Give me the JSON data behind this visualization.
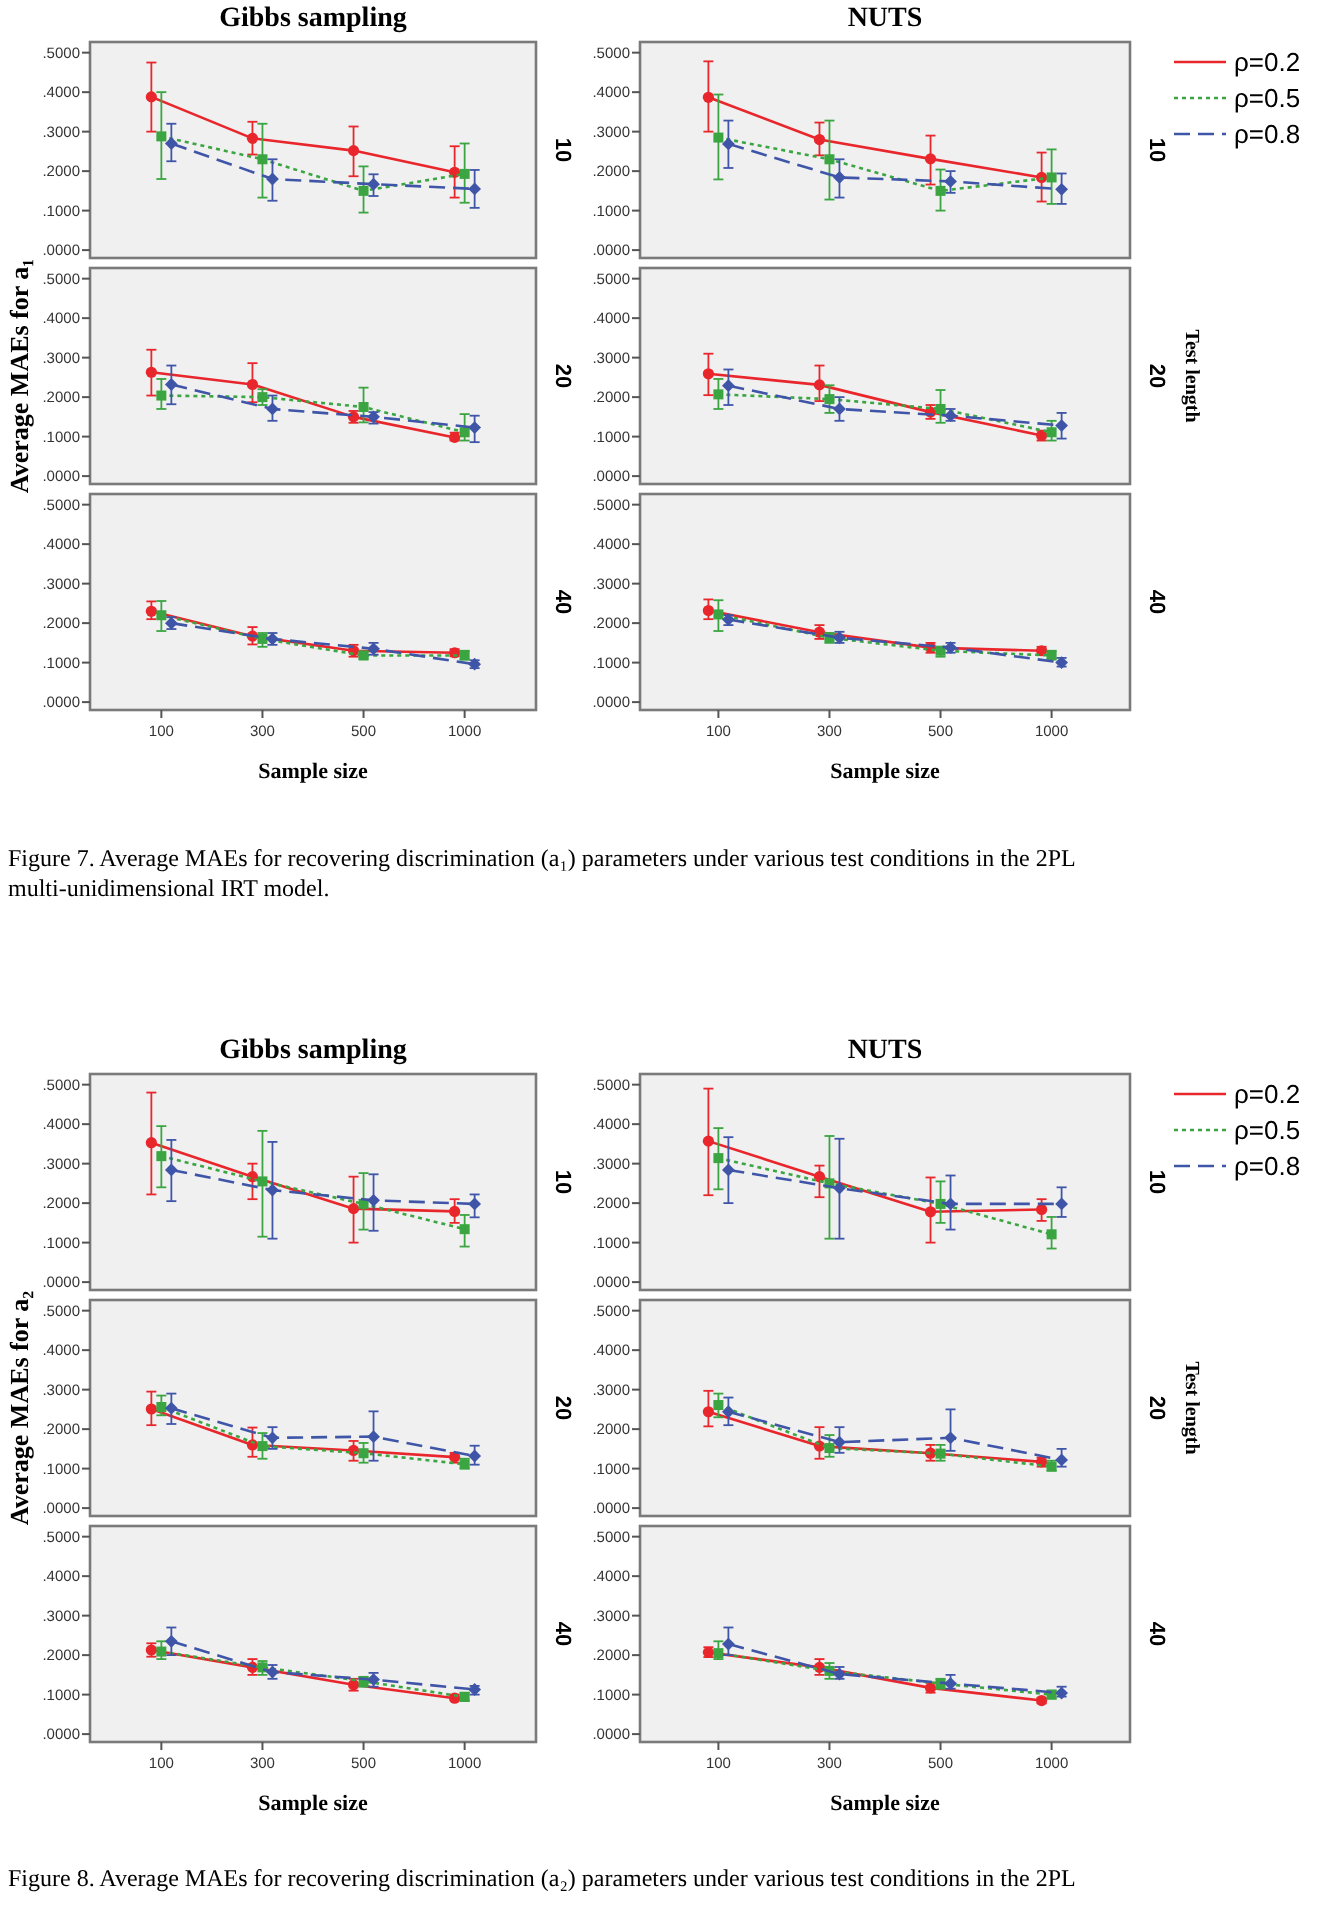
{
  "chart_data": [
    {
      "type": "line",
      "title": "Gibbs sampling",
      "categories": [
        "100",
        "300",
        "500",
        "1000"
      ],
      "ylim": [
        -0.02,
        0.527
      ],
      "yticks": [
        {
          "value": 0,
          "label": ".0000"
        },
        {
          "value": 0.1,
          "label": ".1000"
        },
        {
          "value": 0.2,
          "label": ".2000"
        },
        {
          "value": 0.3,
          "label": ".3000"
        },
        {
          "value": 0.4,
          "label": ".4000"
        },
        {
          "value": 0.5,
          "label": ".5000"
        }
      ],
      "tick_labels": "y",
      "annotations": [
        "10"
      ],
      "series": [
        {
          "color": "#e8262b",
          "marker": "circle",
          "line_style": "solid",
          "values": [
            0.388,
            0.283,
            0.252,
            0.197
          ],
          "errors": [
            [
              0.3,
              0.475
            ],
            [
              0.242,
              0.325
            ],
            [
              0.187,
              0.313
            ],
            [
              0.133,
              0.263
            ]
          ]
        },
        {
          "color": "#3aa541",
          "marker": "square",
          "line_style": "dotted",
          "values": [
            0.288,
            0.23,
            0.15,
            0.193
          ],
          "errors": [
            [
              0.18,
              0.4
            ],
            [
              0.133,
              0.32
            ],
            [
              0.095,
              0.212
            ],
            [
              0.12,
              0.27
            ]
          ]
        },
        {
          "color": "#3f55a8",
          "marker": "diamond",
          "line_style": "dashed",
          "values": [
            0.27,
            0.18,
            0.167,
            0.155
          ],
          "errors": [
            [
              0.225,
              0.32
            ],
            [
              0.125,
              0.23
            ],
            [
              0.137,
              0.192
            ],
            [
              0.107,
              0.203
            ]
          ]
        }
      ]
    },
    {
      "type": "line",
      "title": "NUTS",
      "categories": [
        "100",
        "300",
        "500",
        "1000"
      ],
      "ylim": [
        -0.02,
        0.527
      ],
      "yticks": [
        {
          "value": 0,
          "label": ".0000"
        },
        {
          "value": 0.1,
          "label": ".1000"
        },
        {
          "value": 0.2,
          "label": ".2000"
        },
        {
          "value": 0.3,
          "label": ".3000"
        },
        {
          "value": 0.4,
          "label": ".4000"
        },
        {
          "value": 0.5,
          "label": ".5000"
        }
      ],
      "tick_labels": "y",
      "legend": "right",
      "annotations": [
        "10"
      ],
      "series": [
        {
          "name": "ρ=0.2",
          "color": "#e8262b",
          "marker": "circle",
          "line_style": "solid",
          "values": [
            0.387,
            0.28,
            0.231,
            0.184
          ],
          "errors": [
            [
              0.3,
              0.478
            ],
            [
              0.24,
              0.323
            ],
            [
              0.166,
              0.29
            ],
            [
              0.123,
              0.247
            ]
          ]
        },
        {
          "name": "ρ=0.5",
          "color": "#3aa541",
          "marker": "square",
          "line_style": "dotted",
          "values": [
            0.285,
            0.23,
            0.15,
            0.184
          ],
          "errors": [
            [
              0.179,
              0.394
            ],
            [
              0.128,
              0.328
            ],
            [
              0.1,
              0.204
            ],
            [
              0.117,
              0.255
            ]
          ]
        },
        {
          "name": "ρ=0.8",
          "color": "#3f55a8",
          "marker": "diamond",
          "line_style": "dashed",
          "values": [
            0.269,
            0.184,
            0.174,
            0.154
          ],
          "errors": [
            [
              0.208,
              0.328
            ],
            [
              0.133,
              0.23
            ],
            [
              0.145,
              0.2
            ],
            [
              0.117,
              0.194
            ]
          ]
        }
      ]
    },
    {
      "type": "line",
      "ylabel": "Average MAEs for a₁",
      "categories": [
        "100",
        "300",
        "500",
        "1000"
      ],
      "ylim": [
        -0.02,
        0.527
      ],
      "yticks": [
        {
          "value": 0,
          "label": ".0000"
        },
        {
          "value": 0.1,
          "label": ".1000"
        },
        {
          "value": 0.2,
          "label": ".2000"
        },
        {
          "value": 0.3,
          "label": ".3000"
        },
        {
          "value": 0.4,
          "label": ".4000"
        },
        {
          "value": 0.5,
          "label": ".5000"
        }
      ],
      "tick_labels": "y",
      "annotations": [
        "20"
      ],
      "series": [
        {
          "color": "#e8262b",
          "marker": "circle",
          "line_style": "solid",
          "values": [
            0.263,
            0.232,
            0.15,
            0.098
          ],
          "errors": [
            [
              0.204,
              0.32
            ],
            [
              0.187,
              0.286
            ],
            [
              0.135,
              0.165
            ],
            [
              0.09,
              0.11
            ]
          ]
        },
        {
          "color": "#3aa541",
          "marker": "square",
          "line_style": "dotted",
          "values": [
            0.204,
            0.2,
            0.175,
            0.111
          ],
          "errors": [
            [
              0.17,
              0.246
            ],
            [
              0.18,
              0.22
            ],
            [
              0.136,
              0.224
            ],
            [
              0.09,
              0.157
            ]
          ]
        },
        {
          "color": "#3f55a8",
          "marker": "diamond",
          "line_style": "dashed",
          "values": [
            0.232,
            0.17,
            0.15,
            0.123
          ],
          "errors": [
            [
              0.182,
              0.28
            ],
            [
              0.14,
              0.204
            ],
            [
              0.133,
              0.162
            ],
            [
              0.086,
              0.153
            ]
          ]
        }
      ]
    },
    {
      "type": "line",
      "categories": [
        "100",
        "300",
        "500",
        "1000"
      ],
      "ylim": [
        -0.02,
        0.527
      ],
      "yticks": [
        {
          "value": 0,
          "label": ".0000"
        },
        {
          "value": 0.1,
          "label": ".1000"
        },
        {
          "value": 0.2,
          "label": ".2000"
        },
        {
          "value": 0.3,
          "label": ".3000"
        },
        {
          "value": 0.4,
          "label": ".4000"
        },
        {
          "value": 0.5,
          "label": ".5000"
        }
      ],
      "tick_labels": "y",
      "annotations": [
        "20",
        "Test length"
      ],
      "series": [
        {
          "color": "#e8262b",
          "marker": "circle",
          "line_style": "solid",
          "values": [
            0.259,
            0.231,
            0.162,
            0.103
          ],
          "errors": [
            [
              0.205,
              0.31
            ],
            [
              0.19,
              0.28
            ],
            [
              0.145,
              0.18
            ],
            [
              0.09,
              0.115
            ]
          ]
        },
        {
          "color": "#3aa541",
          "marker": "square",
          "line_style": "dotted",
          "values": [
            0.207,
            0.195,
            0.17,
            0.111
          ],
          "errors": [
            [
              0.17,
              0.246
            ],
            [
              0.16,
              0.23
            ],
            [
              0.135,
              0.218
            ],
            [
              0.09,
              0.14
            ]
          ]
        },
        {
          "color": "#3f55a8",
          "marker": "diamond",
          "line_style": "dashed",
          "values": [
            0.229,
            0.17,
            0.153,
            0.128
          ],
          "errors": [
            [
              0.18,
              0.27
            ],
            [
              0.14,
              0.2
            ],
            [
              0.14,
              0.17
            ],
            [
              0.095,
              0.16
            ]
          ]
        }
      ]
    },
    {
      "type": "line",
      "xlabel": "Sample size",
      "categories": [
        "100",
        "300",
        "500",
        "1000"
      ],
      "ylim": [
        -0.02,
        0.527
      ],
      "yticks": [
        {
          "value": 0,
          "label": ".0000"
        },
        {
          "value": 0.1,
          "label": ".1000"
        },
        {
          "value": 0.2,
          "label": ".2000"
        },
        {
          "value": 0.3,
          "label": ".3000"
        },
        {
          "value": 0.4,
          "label": ".4000"
        },
        {
          "value": 0.5,
          "label": ".5000"
        }
      ],
      "annotations": [
        "40",
        "Figure 7. Average MAEs for recovering discrimination (a₁) parameters under various test conditions in the 2PL multi-unidimensional IRT model."
      ],
      "series": [
        {
          "color": "#e8262b",
          "marker": "circle",
          "line_style": "solid",
          "values": [
            0.23,
            0.167,
            0.13,
            0.125
          ],
          "errors": [
            [
              0.21,
              0.255
            ],
            [
              0.146,
              0.19
            ],
            [
              0.115,
              0.145
            ],
            [
              0.116,
              0.134
            ]
          ]
        },
        {
          "color": "#3aa541",
          "marker": "square",
          "line_style": "dotted",
          "values": [
            0.22,
            0.16,
            0.118,
            0.118
          ],
          "errors": [
            [
              0.18,
              0.256
            ],
            [
              0.14,
              0.175
            ],
            [
              0.11,
              0.128
            ],
            [
              0.108,
              0.13
            ]
          ]
        },
        {
          "color": "#3f55a8",
          "marker": "diamond",
          "line_style": "dashed",
          "values": [
            0.2,
            0.16,
            0.135,
            0.096
          ],
          "errors": [
            [
              0.185,
              0.215
            ],
            [
              0.145,
              0.175
            ],
            [
              0.12,
              0.15
            ],
            [
              0.086,
              0.106
            ]
          ]
        }
      ]
    },
    {
      "type": "line",
      "xlabel": "Sample size",
      "categories": [
        "100",
        "300",
        "500",
        "1000"
      ],
      "ylim": [
        -0.02,
        0.527
      ],
      "yticks": [
        {
          "value": 0,
          "label": ".0000"
        },
        {
          "value": 0.1,
          "label": ".1000"
        },
        {
          "value": 0.2,
          "label": ".2000"
        },
        {
          "value": 0.3,
          "label": ".3000"
        },
        {
          "value": 0.4,
          "label": ".4000"
        },
        {
          "value": 0.5,
          "label": ".5000"
        }
      ],
      "annotations": [
        "40"
      ],
      "series": [
        {
          "color": "#e8262b",
          "marker": "circle",
          "line_style": "solid",
          "values": [
            0.232,
            0.177,
            0.138,
            0.13
          ],
          "errors": [
            [
              0.21,
              0.26
            ],
            [
              0.16,
              0.195
            ],
            [
              0.125,
              0.15
            ],
            [
              0.12,
              0.14
            ]
          ]
        },
        {
          "color": "#3aa541",
          "marker": "square",
          "line_style": "dotted",
          "values": [
            0.222,
            0.163,
            0.13,
            0.118
          ],
          "errors": [
            [
              0.18,
              0.258
            ],
            [
              0.15,
              0.175
            ],
            [
              0.115,
              0.14
            ],
            [
              0.11,
              0.13
            ]
          ]
        },
        {
          "color": "#3f55a8",
          "marker": "diamond",
          "line_style": "dashed",
          "values": [
            0.209,
            0.163,
            0.138,
            0.1
          ],
          "errors": [
            [
              0.195,
              0.22
            ],
            [
              0.15,
              0.178
            ],
            [
              0.125,
              0.15
            ],
            [
              0.09,
              0.112
            ]
          ]
        }
      ]
    },
    {
      "type": "line",
      "title": "Gibbs sampling",
      "categories": [
        "100",
        "300",
        "500",
        "1000"
      ],
      "ylim": [
        -0.02,
        0.527
      ],
      "yticks": [
        {
          "value": 0,
          "label": ".0000"
        },
        {
          "value": 0.1,
          "label": ".1000"
        },
        {
          "value": 0.2,
          "label": ".2000"
        },
        {
          "value": 0.3,
          "label": ".3000"
        },
        {
          "value": 0.4,
          "label": ".4000"
        },
        {
          "value": 0.5,
          "label": ".5000"
        }
      ],
      "tick_labels": "y",
      "annotations": [
        "10"
      ],
      "series": [
        {
          "color": "#e8262b",
          "marker": "circle",
          "line_style": "solid",
          "values": [
            0.353,
            0.267,
            0.186,
            0.179
          ],
          "errors": [
            [
              0.222,
              0.48
            ],
            [
              0.21,
              0.3
            ],
            [
              0.1,
              0.267
            ],
            [
              0.15,
              0.21
            ]
          ]
        },
        {
          "color": "#3aa541",
          "marker": "square",
          "line_style": "dotted",
          "values": [
            0.319,
            0.255,
            0.198,
            0.134
          ],
          "errors": [
            [
              0.24,
              0.395
            ],
            [
              0.115,
              0.383
            ],
            [
              0.133,
              0.276
            ],
            [
              0.09,
              0.17
            ]
          ]
        },
        {
          "color": "#3f55a8",
          "marker": "diamond",
          "line_style": "dashed",
          "values": [
            0.284,
            0.233,
            0.207,
            0.198
          ],
          "errors": [
            [
              0.205,
              0.36
            ],
            [
              0.11,
              0.355
            ],
            [
              0.13,
              0.273
            ],
            [
              0.164,
              0.222
            ]
          ]
        }
      ]
    },
    {
      "type": "line",
      "title": "NUTS",
      "categories": [
        "100",
        "300",
        "500",
        "1000"
      ],
      "ylim": [
        -0.02,
        0.527
      ],
      "yticks": [
        {
          "value": 0,
          "label": ".0000"
        },
        {
          "value": 0.1,
          "label": ".1000"
        },
        {
          "value": 0.2,
          "label": ".2000"
        },
        {
          "value": 0.3,
          "label": ".3000"
        },
        {
          "value": 0.4,
          "label": ".4000"
        },
        {
          "value": 0.5,
          "label": ".5000"
        }
      ],
      "tick_labels": "y",
      "legend": "right",
      "annotations": [
        "10"
      ],
      "series": [
        {
          "name": "ρ=0.2",
          "color": "#e8262b",
          "marker": "circle",
          "line_style": "solid",
          "values": [
            0.357,
            0.267,
            0.178,
            0.184
          ],
          "errors": [
            [
              0.22,
              0.49
            ],
            [
              0.215,
              0.295
            ],
            [
              0.1,
              0.265
            ],
            [
              0.155,
              0.21
            ]
          ]
        },
        {
          "name": "ρ=0.5",
          "color": "#3aa541",
          "marker": "square",
          "line_style": "dotted",
          "values": [
            0.314,
            0.25,
            0.198,
            0.121
          ],
          "errors": [
            [
              0.235,
              0.39
            ],
            [
              0.11,
              0.37
            ],
            [
              0.15,
              0.255
            ],
            [
              0.085,
              0.165
            ]
          ]
        },
        {
          "name": "ρ=0.8",
          "color": "#3f55a8",
          "marker": "diamond",
          "line_style": "dashed",
          "values": [
            0.284,
            0.238,
            0.198,
            0.198
          ],
          "errors": [
            [
              0.2,
              0.367
            ],
            [
              0.11,
              0.363
            ],
            [
              0.133,
              0.27
            ],
            [
              0.165,
              0.24
            ]
          ]
        }
      ]
    },
    {
      "type": "line",
      "ylabel": "Average MAEs for a₂",
      "categories": [
        "100",
        "300",
        "500",
        "1000"
      ],
      "ylim": [
        -0.02,
        0.527
      ],
      "yticks": [
        {
          "value": 0,
          "label": ".0000"
        },
        {
          "value": 0.1,
          "label": ".1000"
        },
        {
          "value": 0.2,
          "label": ".2000"
        },
        {
          "value": 0.3,
          "label": ".3000"
        },
        {
          "value": 0.4,
          "label": ".4000"
        },
        {
          "value": 0.5,
          "label": ".5000"
        }
      ],
      "tick_labels": "y",
      "annotations": [
        "20"
      ],
      "series": [
        {
          "color": "#e8262b",
          "marker": "circle",
          "line_style": "solid",
          "values": [
            0.251,
            0.16,
            0.146,
            0.129
          ],
          "errors": [
            [
              0.21,
              0.295
            ],
            [
              0.13,
              0.204
            ],
            [
              0.12,
              0.17
            ],
            [
              0.115,
              0.14
            ]
          ]
        },
        {
          "color": "#3aa541",
          "marker": "square",
          "line_style": "dotted",
          "values": [
            0.256,
            0.157,
            0.139,
            0.111
          ],
          "errors": [
            [
              0.235,
              0.285
            ],
            [
              0.125,
              0.19
            ],
            [
              0.115,
              0.165
            ],
            [
              0.1,
              0.125
            ]
          ]
        },
        {
          "color": "#3f55a8",
          "marker": "diamond",
          "line_style": "dashed",
          "values": [
            0.253,
            0.178,
            0.181,
            0.132
          ],
          "errors": [
            [
              0.213,
              0.29
            ],
            [
              0.15,
              0.205
            ],
            [
              0.12,
              0.245
            ],
            [
              0.11,
              0.158
            ]
          ]
        }
      ]
    },
    {
      "type": "line",
      "categories": [
        "100",
        "300",
        "500",
        "1000"
      ],
      "ylim": [
        -0.02,
        0.527
      ],
      "yticks": [
        {
          "value": 0,
          "label": ".0000"
        },
        {
          "value": 0.1,
          "label": ".1000"
        },
        {
          "value": 0.2,
          "label": ".2000"
        },
        {
          "value": 0.3,
          "label": ".3000"
        },
        {
          "value": 0.4,
          "label": ".4000"
        },
        {
          "value": 0.5,
          "label": ".5000"
        }
      ],
      "tick_labels": "y",
      "annotations": [
        "20",
        "Test length"
      ],
      "series": [
        {
          "color": "#e8262b",
          "marker": "circle",
          "line_style": "solid",
          "values": [
            0.244,
            0.157,
            0.139,
            0.117
          ],
          "errors": [
            [
              0.207,
              0.297
            ],
            [
              0.125,
              0.205
            ],
            [
              0.12,
              0.16
            ],
            [
              0.105,
              0.128
            ]
          ]
        },
        {
          "color": "#3aa541",
          "marker": "square",
          "line_style": "dotted",
          "values": [
            0.261,
            0.152,
            0.138,
            0.105
          ],
          "errors": [
            [
              0.23,
              0.29
            ],
            [
              0.13,
              0.185
            ],
            [
              0.12,
              0.16
            ],
            [
              0.095,
              0.12
            ]
          ]
        },
        {
          "color": "#3f55a8",
          "marker": "diamond",
          "line_style": "dashed",
          "values": [
            0.244,
            0.167,
            0.178,
            0.122
          ],
          "errors": [
            [
              0.21,
              0.28
            ],
            [
              0.14,
              0.205
            ],
            [
              0.145,
              0.25
            ],
            [
              0.105,
              0.15
            ]
          ]
        }
      ]
    },
    {
      "type": "line",
      "xlabel": "Sample size",
      "categories": [
        "100",
        "300",
        "500",
        "1000"
      ],
      "ylim": [
        -0.02,
        0.527
      ],
      "yticks": [
        {
          "value": 0,
          "label": ".0000"
        },
        {
          "value": 0.1,
          "label": ".1000"
        },
        {
          "value": 0.2,
          "label": ".2000"
        },
        {
          "value": 0.3,
          "label": ".3000"
        },
        {
          "value": 0.4,
          "label": ".4000"
        },
        {
          "value": 0.5,
          "label": ".5000"
        }
      ],
      "annotations": [
        "40",
        "Figure 8. Average MAEs for recovering discrimination (a₂) parameters under various test conditions in the 2PL"
      ],
      "series": [
        {
          "color": "#e8262b",
          "marker": "circle",
          "line_style": "solid",
          "values": [
            0.213,
            0.169,
            0.125,
            0.091
          ],
          "errors": [
            [
              0.196,
              0.23
            ],
            [
              0.15,
              0.19
            ],
            [
              0.11,
              0.14
            ],
            [
              0.085,
              0.1
            ]
          ]
        },
        {
          "color": "#3aa541",
          "marker": "square",
          "line_style": "dotted",
          "values": [
            0.209,
            0.169,
            0.134,
            0.094
          ],
          "errors": [
            [
              0.19,
              0.235
            ],
            [
              0.15,
              0.185
            ],
            [
              0.12,
              0.145
            ],
            [
              0.085,
              0.105
            ]
          ]
        },
        {
          "color": "#3f55a8",
          "marker": "diamond",
          "line_style": "dashed",
          "values": [
            0.235,
            0.157,
            0.138,
            0.113
          ],
          "errors": [
            [
              0.2,
              0.27
            ],
            [
              0.14,
              0.175
            ],
            [
              0.12,
              0.155
            ],
            [
              0.1,
              0.122
            ]
          ]
        }
      ]
    },
    {
      "type": "line",
      "xlabel": "Sample size",
      "categories": [
        "100",
        "300",
        "500",
        "1000"
      ],
      "ylim": [
        -0.02,
        0.527
      ],
      "yticks": [
        {
          "value": 0,
          "label": ".0000"
        },
        {
          "value": 0.1,
          "label": ".1000"
        },
        {
          "value": 0.2,
          "label": ".2000"
        },
        {
          "value": 0.3,
          "label": ".3000"
        },
        {
          "value": 0.4,
          "label": ".4000"
        },
        {
          "value": 0.5,
          "label": ".5000"
        }
      ],
      "annotations": [
        "40"
      ],
      "series": [
        {
          "color": "#e8262b",
          "marker": "circle",
          "line_style": "solid",
          "values": [
            0.207,
            0.169,
            0.117,
            0.085
          ],
          "errors": [
            [
              0.195,
              0.22
            ],
            [
              0.15,
              0.19
            ],
            [
              0.105,
              0.13
            ],
            [
              0.078,
              0.092
            ]
          ]
        },
        {
          "color": "#3aa541",
          "marker": "square",
          "line_style": "dotted",
          "values": [
            0.205,
            0.16,
            0.128,
            0.1
          ],
          "errors": [
            [
              0.19,
              0.235
            ],
            [
              0.14,
              0.18
            ],
            [
              0.115,
              0.14
            ],
            [
              0.09,
              0.11
            ]
          ]
        },
        {
          "color": "#3f55a8",
          "marker": "diamond",
          "line_style": "dashed",
          "values": [
            0.228,
            0.152,
            0.128,
            0.104
          ],
          "errors": [
            [
              0.2,
              0.27
            ],
            [
              0.14,
              0.17
            ],
            [
              0.115,
              0.15
            ],
            [
              0.095,
              0.12
            ]
          ]
        }
      ]
    }
  ]
}
